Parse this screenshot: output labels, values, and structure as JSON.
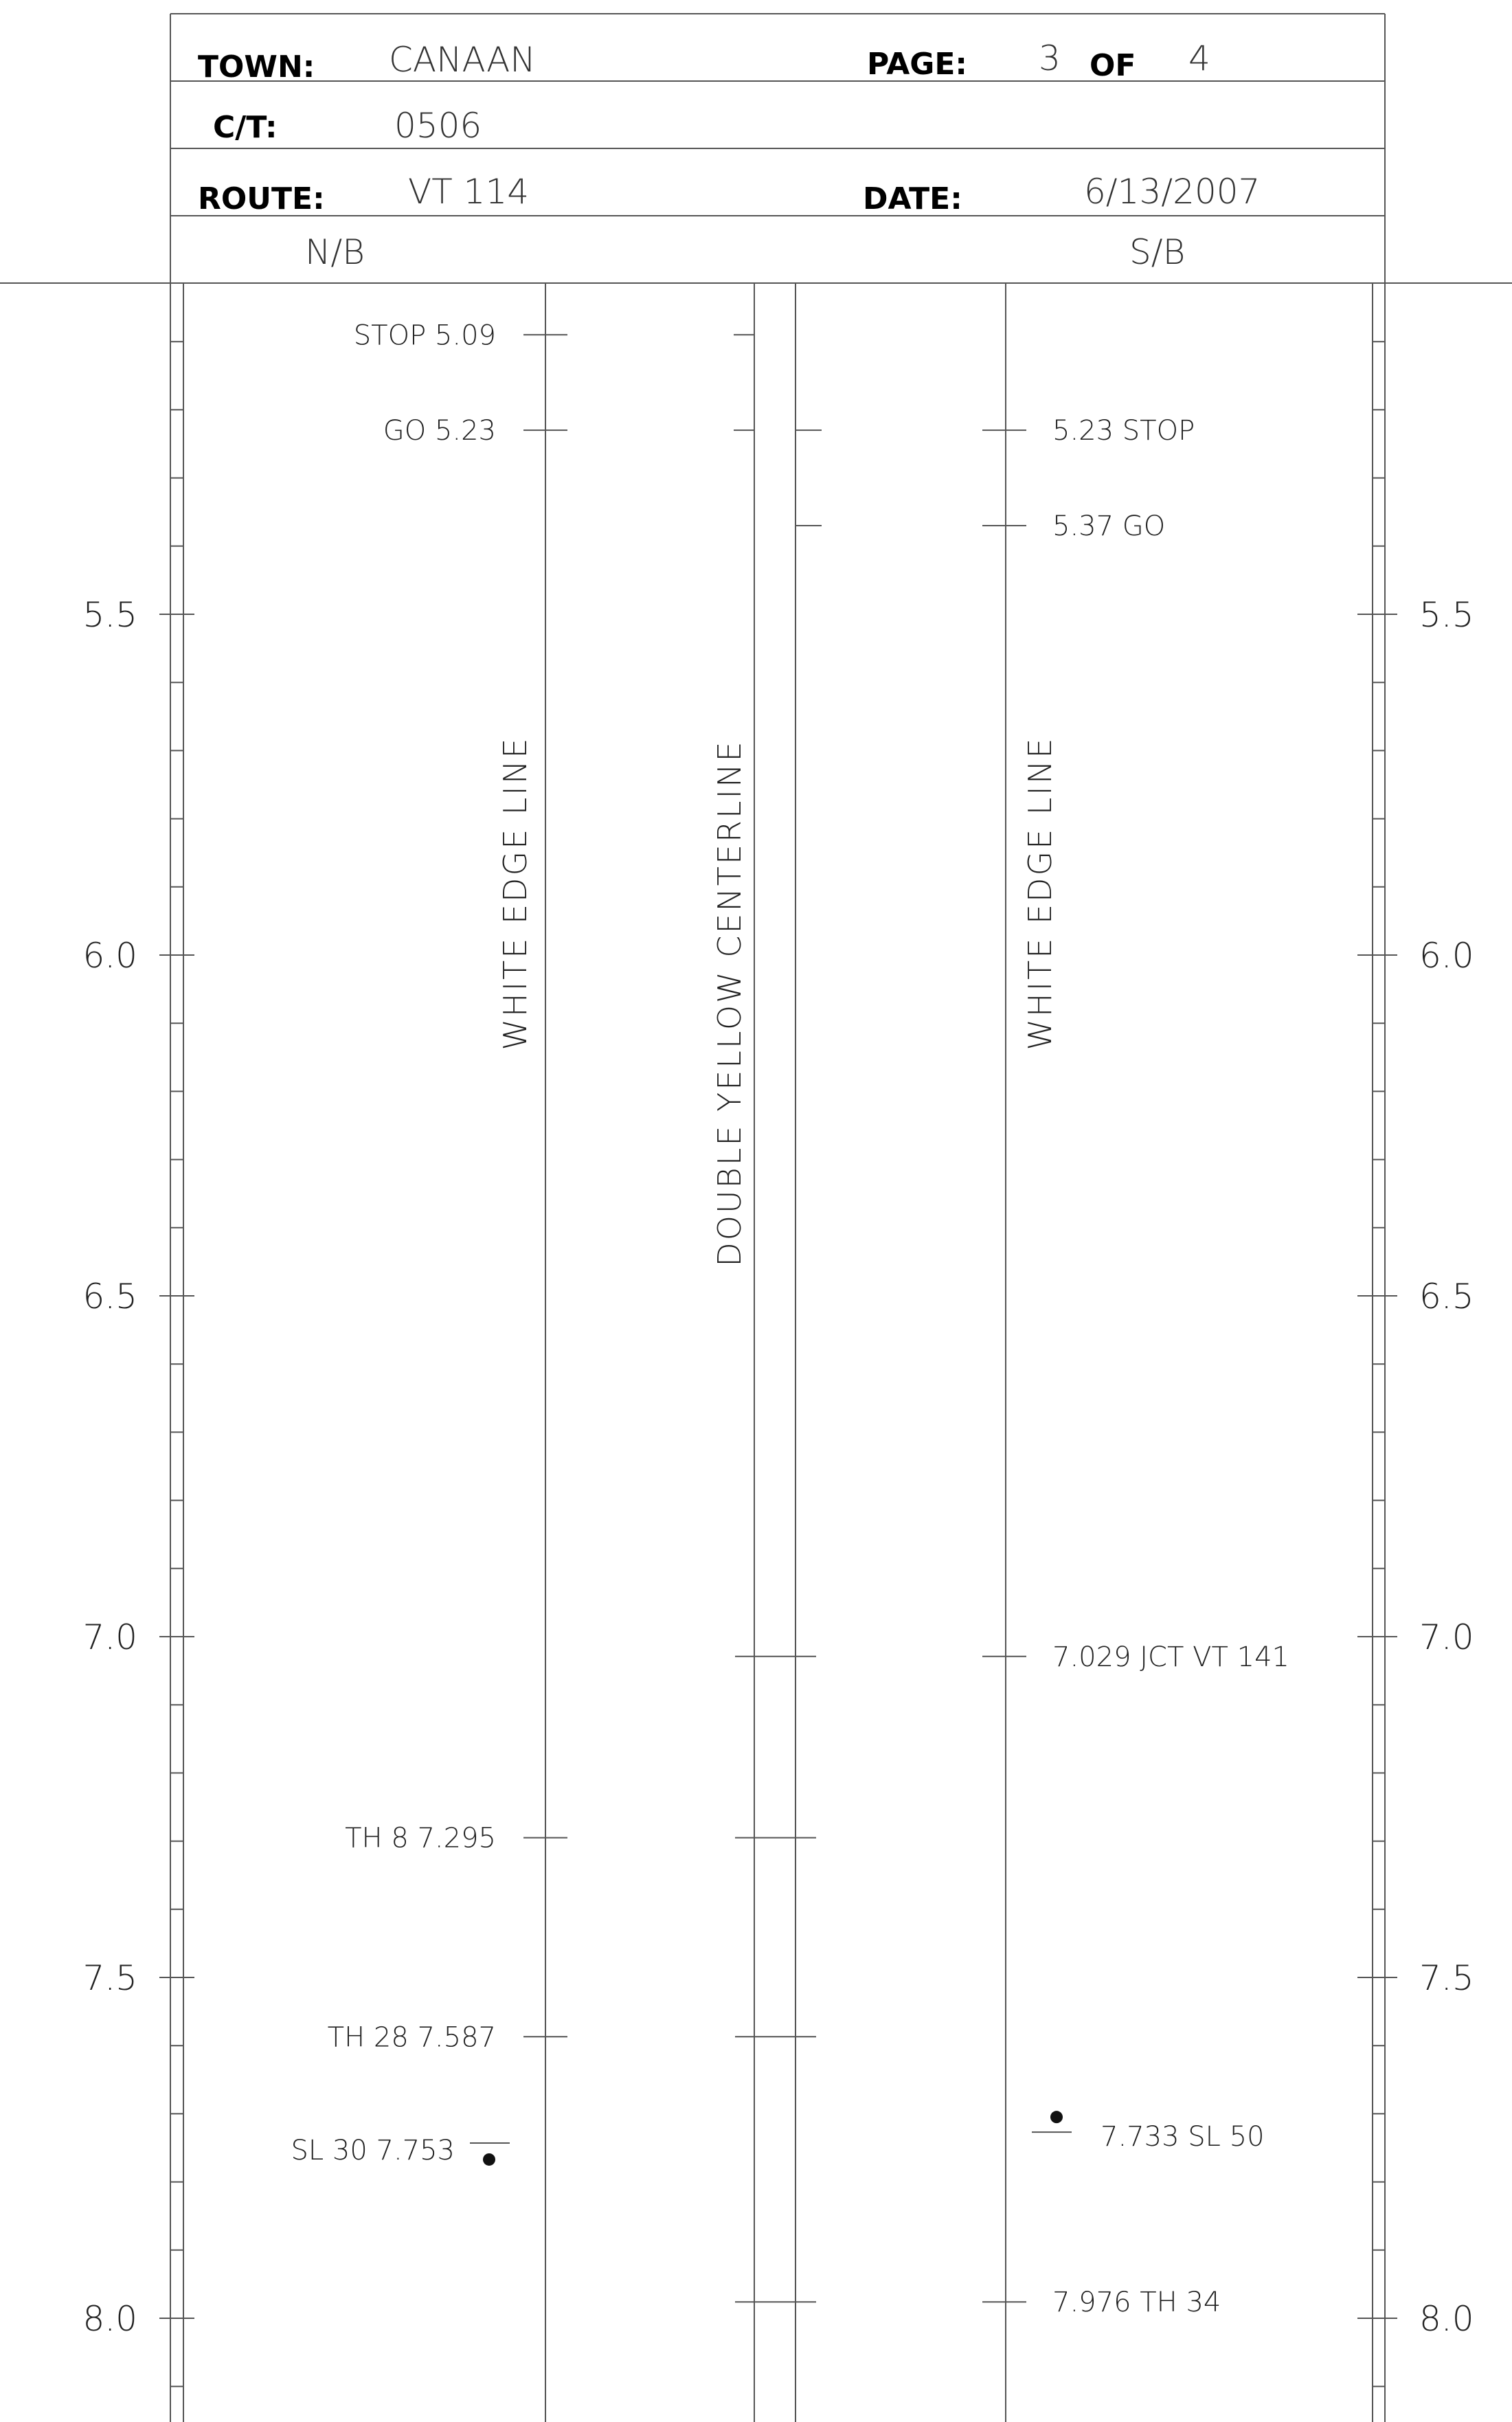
{
  "header": {
    "town": {
      "label": "TOWN:",
      "value": "CANAAN"
    },
    "page": {
      "label": "PAGE:",
      "current": "3",
      "of_label": "OF",
      "total": "4"
    },
    "ct": {
      "label": "C/T:",
      "value": "0506"
    },
    "route": {
      "label": "ROUTE:",
      "value": "VT 114"
    },
    "date": {
      "label": "DATE:",
      "value": "6/13/2007"
    },
    "direction_nb": "N/B",
    "direction_sb": "S/B"
  },
  "line_labels": {
    "nb_edge": "WHITE EDGE LINE",
    "centerline": "DOUBLE YELLOW CENTERLINE",
    "sb_edge": "WHITE EDGE LINE"
  },
  "mileposts": {
    "left": [
      "5.5",
      "6.0",
      "6.5",
      "7.0",
      "7.5",
      "8.0"
    ],
    "right": [
      "5.5",
      "6.0",
      "6.5",
      "7.0",
      "7.5",
      "8.0"
    ]
  },
  "nb_features": [
    {
      "text": "STOP 5.09",
      "mile": 5.09
    },
    {
      "text": "GO 5.23",
      "mile": 5.23
    },
    {
      "text": "TH 8 7.295",
      "mile": 7.295
    },
    {
      "text": "TH 28 7.587",
      "mile": 7.587
    },
    {
      "text": "SL 30 7.753",
      "mile": 7.753
    }
  ],
  "sb_features": [
    {
      "text": "5.23 STOP",
      "mile": 5.23
    },
    {
      "text": "5.37 GO",
      "mile": 5.37
    },
    {
      "text": "7.029 JCT VT 141",
      "mile": 7.029
    },
    {
      "text": "7.733 SL 50",
      "mile": 7.733
    },
    {
      "text": "7.976 TH 34",
      "mile": 7.976
    }
  ],
  "centerline_marks_miles": [
    5.09,
    5.23,
    5.37,
    7.029,
    7.295,
    7.587,
    7.976
  ],
  "colors": {
    "line": "#555555",
    "text": "#222222",
    "label": "#000000"
  }
}
